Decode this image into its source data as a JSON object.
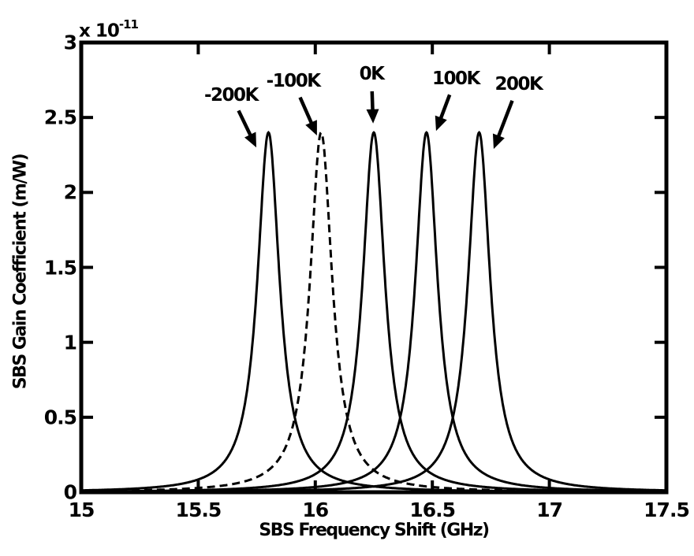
{
  "chart_data": {
    "type": "line",
    "curve_model": "lorentzian",
    "title_multiplier": {
      "base": "x 10",
      "exponent": "-11"
    },
    "xlabel": "SBS Frequency Shift (GHz)",
    "ylabel": "SBS Gain Coefficient (m/W)",
    "xlim": [
      15,
      17.5
    ],
    "ylim": [
      0,
      3
    ],
    "xticks": [
      15,
      15.5,
      16,
      16.5,
      17,
      17.5
    ],
    "xtick_labels": [
      "15",
      "15.5",
      "16",
      "16.5",
      "17",
      "17.5"
    ],
    "yticks": [
      0,
      0.5,
      1,
      1.5,
      2,
      2.5,
      3
    ],
    "ytick_labels": [
      "0",
      "0.5",
      "1",
      "1.5",
      "2",
      "2.5",
      "3"
    ],
    "grid": false,
    "legend": "none",
    "line_color": "#000000",
    "background": "#ffffff",
    "series": [
      {
        "name": "-200K",
        "peak_center_ghz": 15.8,
        "peak_value": 2.4,
        "fwhm_ghz": 0.115,
        "style": "solid"
      },
      {
        "name": "-100K",
        "peak_center_ghz": 16.025,
        "peak_value": 2.4,
        "fwhm_ghz": 0.115,
        "style": "dashed"
      },
      {
        "name": "0K",
        "peak_center_ghz": 16.25,
        "peak_value": 2.4,
        "fwhm_ghz": 0.115,
        "style": "solid"
      },
      {
        "name": "100K",
        "peak_center_ghz": 16.475,
        "peak_value": 2.4,
        "fwhm_ghz": 0.115,
        "style": "solid"
      },
      {
        "name": "200K",
        "peak_center_ghz": 16.7,
        "peak_value": 2.4,
        "fwhm_ghz": 0.115,
        "style": "solid"
      }
    ],
    "annotations": [
      {
        "text": "-200K",
        "label_x": 15.64,
        "label_y": 2.65,
        "tip_x": 15.748,
        "tip_y": 2.3
      },
      {
        "text": "-100K",
        "label_x": 15.905,
        "label_y": 2.74,
        "tip_x": 16.007,
        "tip_y": 2.38
      },
      {
        "text": "0K",
        "label_x": 16.24,
        "label_y": 2.79,
        "tip_x": 16.247,
        "tip_y": 2.46
      },
      {
        "text": "100K",
        "label_x": 16.6,
        "label_y": 2.76,
        "tip_x": 16.516,
        "tip_y": 2.41
      },
      {
        "text": "200K",
        "label_x": 16.868,
        "label_y": 2.72,
        "tip_x": 16.762,
        "tip_y": 2.29
      }
    ]
  }
}
